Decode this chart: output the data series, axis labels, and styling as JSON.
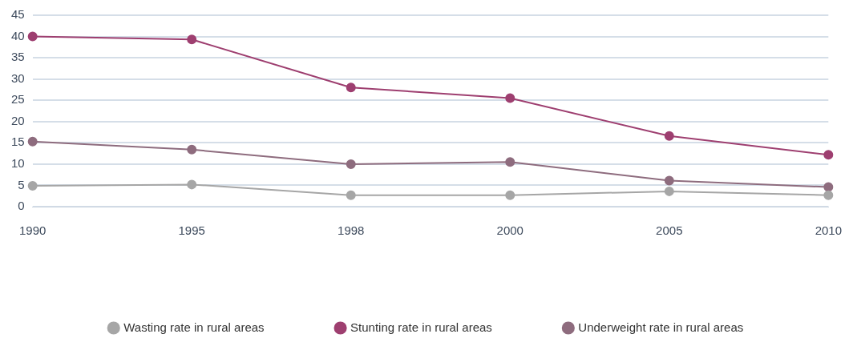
{
  "chart_data": {
    "type": "line",
    "categories": [
      "1990",
      "1995",
      "1998",
      "2000",
      "2005",
      "2010"
    ],
    "series": [
      {
        "name": "Wasting rate in rural areas",
        "color": "#a6a6a6",
        "values": [
          4.9,
          5.2,
          2.7,
          2.7,
          3.6,
          2.7
        ]
      },
      {
        "name": "Stunting rate in rural areas",
        "color": "#9e3f70",
        "values": [
          40,
          39.3,
          28,
          25.5,
          16.6,
          12.2
        ]
      },
      {
        "name": "Underweight rate in rural areas",
        "color": "#8e6c7e",
        "values": [
          15.3,
          13.4,
          10,
          10.5,
          6.1,
          4.6
        ]
      }
    ],
    "ylim": [
      0,
      45
    ],
    "yticks": [
      0,
      5,
      10,
      15,
      20,
      25,
      30,
      35,
      40,
      45
    ],
    "grid": "y",
    "legend": "bottom",
    "marker": "circle",
    "line_style": "solid"
  }
}
